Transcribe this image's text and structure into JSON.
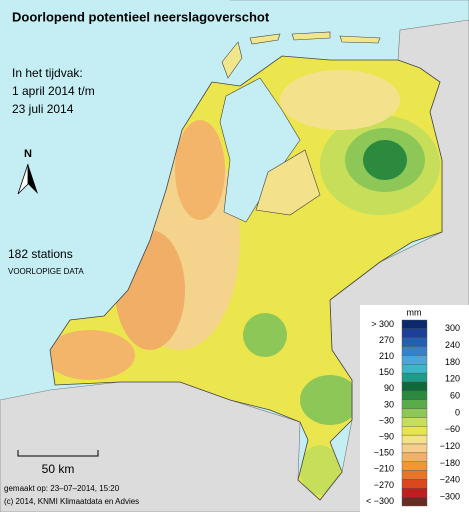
{
  "header": {
    "title": "Doorlopend potentieel neerslagoverschot"
  },
  "period": {
    "label": "In het tijdvak:",
    "start": "1 april 2014 t/m",
    "end": "23 juli 2014"
  },
  "stations": "182 stations",
  "status": "VOORLOPIGE DATA",
  "north": "N",
  "scale_bar": "50 km",
  "footer": {
    "made": "gemaakt op: 23–07–2014, 15:20",
    "copyright": "(c) 2014, KNMI Klimaatdata en Advies"
  },
  "legend": {
    "unit": "mm",
    "left_labels": [
      "> 300",
      "270",
      "210",
      "150",
      "90",
      "30",
      "−30",
      "−90",
      "−150",
      "−210",
      "−270",
      "< −300"
    ],
    "right_labels": [
      "300",
      "240",
      "180",
      "120",
      "60",
      "0",
      "−60",
      "−120",
      "−180",
      "−240",
      "−300"
    ],
    "colors": [
      "#0b2a6b",
      "#1c3f9a",
      "#2460b0",
      "#3a80c6",
      "#4fa3d6",
      "#3ab6c8",
      "#1e9c8a",
      "#0e6a3a",
      "#2b8a3e",
      "#58ad4a",
      "#8dc757",
      "#c6de5a",
      "#e6e54c",
      "#f4e18c",
      "#f6cd8a",
      "#f2b165",
      "#ee983a",
      "#e7762a",
      "#dc481e",
      "#bf201d",
      "#6a2a22"
    ]
  }
}
